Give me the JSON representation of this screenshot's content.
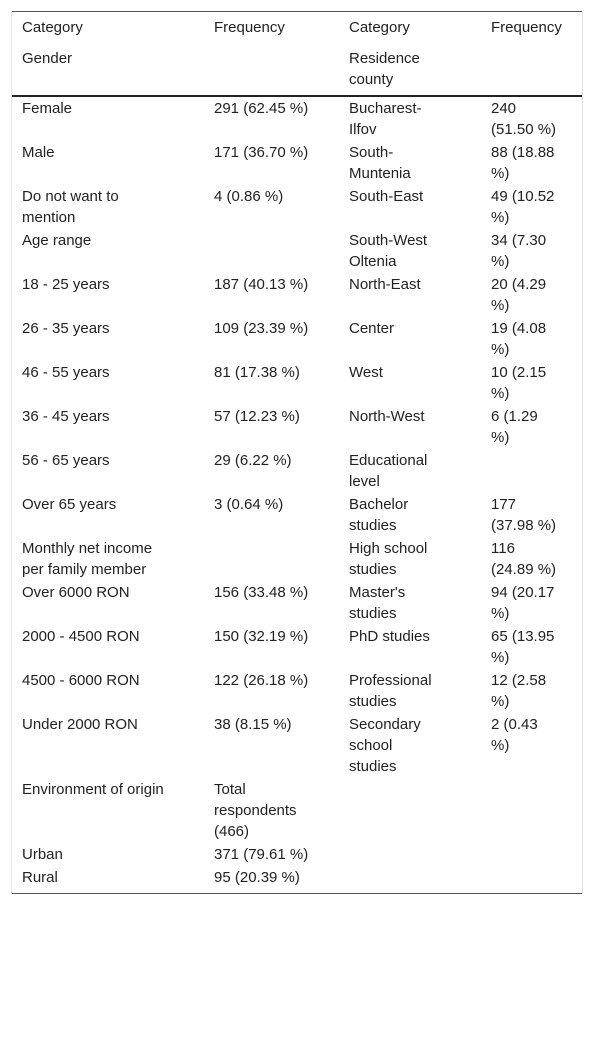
{
  "table": {
    "header": [
      [
        "Category",
        "Frequency",
        "Category",
        "Frequency"
      ],
      [
        "Gender",
        null,
        "Residence county",
        null
      ]
    ],
    "rows": [
      [
        "Female",
        "291 (62.45 %)",
        "Bucharest-Ilfov",
        "240 (51.50 %)"
      ],
      [
        "Male",
        "171 (36.70 %)",
        "South-Muntenia",
        "88 (18.88 %)"
      ],
      [
        "Do not want to mention",
        "4 (0.86 %)",
        "South-East",
        "49 (10.52 %)"
      ],
      [
        "Age range",
        null,
        "South-West Oltenia",
        "34 (7.30 %)"
      ],
      [
        "18 - 25 years",
        "187 (40.13 %)",
        "North-East",
        "20 (4.29 %)"
      ],
      [
        "26 - 35 years",
        "109 (23.39 %)",
        "Center",
        "19 (4.08 %)"
      ],
      [
        "46 - 55 years",
        "81 (17.38 %)",
        "West",
        "10 (2.15 %)"
      ],
      [
        "36 - 45 years",
        "57 (12.23 %)",
        "North-West",
        "6 (1.29 %)"
      ],
      [
        "56 - 65 years",
        "29 (6.22 %)",
        "Educational level",
        null
      ],
      [
        "Over 65 years",
        "3 (0.64 %)",
        "Bachelor studies",
        "177 (37.98 %)"
      ],
      [
        "Monthly net income per family member",
        null,
        "High school studies",
        "116 (24.89 %)"
      ],
      [
        "Over 6000 RON",
        "156 (33.48 %)",
        "Master's studies",
        "94 (20.17 %)"
      ],
      [
        "2000 - 4500 RON",
        "150 (32.19 %)",
        "PhD studies",
        "65 (13.95 %)"
      ],
      [
        "4500 - 6000 RON",
        "122 (26.18 %)",
        "Professional studies",
        "12 (2.58 %)"
      ],
      [
        "Under 2000 RON",
        "38 (8.15 %)",
        "Secondary school studies",
        "2 (0.43 %)"
      ],
      [
        "Environment of origin",
        "Total respondents (466)",
        null,
        null
      ],
      [
        "Urban",
        "371 (79.61 %)",
        null,
        null
      ],
      [
        "Rural",
        "95 (20.39 %)",
        null,
        null
      ]
    ]
  }
}
